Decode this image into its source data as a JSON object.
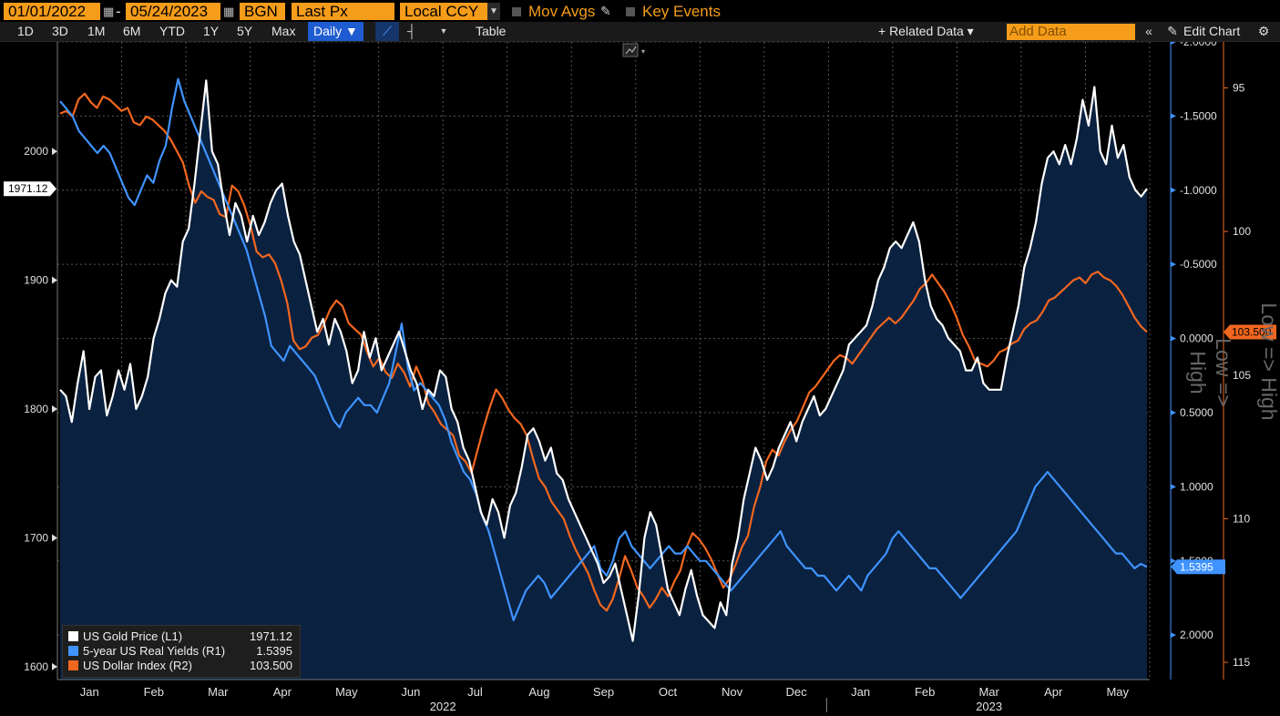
{
  "toolbar": {
    "start_date": "01/01/2022",
    "end_date": "05/24/2023",
    "source": "BGN",
    "field": "Last Px",
    "currency": "Local CCY",
    "mov_avgs": "Mov Avgs",
    "key_events": "Key Events",
    "periods": [
      "1D",
      "3D",
      "1M",
      "6M",
      "YTD",
      "1Y",
      "5Y",
      "Max"
    ],
    "frequency": "Daily ▼",
    "table": "Table",
    "related_data": "+ Related Data ▾",
    "add_data_placeholder": "Add Data",
    "edit_chart": "Edit Chart"
  },
  "colors": {
    "background": "#000000",
    "fill": "#0a2140",
    "gold": "#ffffff",
    "real_yield": "#3f93ff",
    "dxy": "#f2671f",
    "accent": "#f59c1a"
  },
  "icons": [
    "calendar-icon",
    "pencil-icon",
    "line-chart-icon",
    "bar-chart-icon",
    "collapse-icon",
    "edit-icon",
    "gear-icon"
  ],
  "chart_data": {
    "type": "line",
    "x_labels": [
      "Jan",
      "Feb",
      "Mar",
      "Apr",
      "May",
      "Jun",
      "Jul",
      "Aug",
      "Sep",
      "Oct",
      "Nov",
      "Dec",
      "Jan",
      "Feb",
      "Mar",
      "Apr",
      "May"
    ],
    "years": [
      "2022",
      "2023"
    ],
    "left_axis": {
      "ticks": [
        "1600",
        "1700",
        "1800",
        "1900",
        "2000"
      ],
      "ylim": [
        1590,
        2085
      ]
    },
    "right_axis_1": {
      "ticks": [
        "-2.0000",
        "-1.5000",
        "-1.0000",
        "-0.5000",
        "0.0000",
        "0.5000",
        "1.0000",
        "1.5000",
        "2.0000"
      ],
      "label": "Low => High",
      "inverted": true,
      "ylim": [
        -2.0,
        2.3
      ]
    },
    "right_axis_2": {
      "ticks": [
        "95",
        "100",
        "105",
        "110",
        "115"
      ],
      "label": "Low => High",
      "inverted": true,
      "ylim": [
        93.4,
        115.6
      ]
    },
    "series": [
      {
        "name": "US Gold Price (L1)",
        "axis": "left",
        "last": "1971.12",
        "color": "#ffffff",
        "values": [
          1815,
          1810,
          1790,
          1820,
          1845,
          1800,
          1825,
          1830,
          1795,
          1810,
          1830,
          1815,
          1835,
          1800,
          1810,
          1825,
          1855,
          1870,
          1890,
          1900,
          1895,
          1930,
          1940,
          1975,
          2015,
          2055,
          2000,
          1990,
          1960,
          1935,
          1960,
          1950,
          1930,
          1950,
          1935,
          1945,
          1960,
          1970,
          1975,
          1950,
          1930,
          1920,
          1900,
          1880,
          1860,
          1870,
          1850,
          1870,
          1860,
          1845,
          1820,
          1830,
          1860,
          1840,
          1855,
          1830,
          1840,
          1850,
          1860,
          1845,
          1830,
          1820,
          1800,
          1815,
          1810,
          1830,
          1825,
          1800,
          1790,
          1770,
          1760,
          1740,
          1720,
          1710,
          1730,
          1720,
          1700,
          1725,
          1735,
          1755,
          1780,
          1785,
          1775,
          1760,
          1770,
          1750,
          1745,
          1730,
          1720,
          1710,
          1700,
          1690,
          1680,
          1665,
          1670,
          1680,
          1660,
          1640,
          1620,
          1655,
          1700,
          1720,
          1710,
          1685,
          1660,
          1650,
          1640,
          1660,
          1675,
          1655,
          1640,
          1635,
          1630,
          1650,
          1640,
          1680,
          1700,
          1730,
          1750,
          1770,
          1760,
          1745,
          1755,
          1770,
          1780,
          1790,
          1775,
          1790,
          1800,
          1810,
          1795,
          1800,
          1810,
          1820,
          1830,
          1850,
          1855,
          1860,
          1865,
          1880,
          1900,
          1910,
          1925,
          1930,
          1925,
          1935,
          1945,
          1930,
          1900,
          1880,
          1870,
          1865,
          1855,
          1850,
          1845,
          1830,
          1830,
          1840,
          1820,
          1815,
          1815,
          1815,
          1840,
          1860,
          1880,
          1910,
          1925,
          1945,
          1975,
          1995,
          2000,
          1990,
          2005,
          1990,
          2010,
          2040,
          2020,
          2050,
          2000,
          1990,
          2020,
          1995,
          2005,
          1980,
          1970,
          1965,
          1971
        ]
      },
      {
        "name": "5-year US Real Yields (R1)",
        "axis": "right1",
        "last": "1.5395",
        "color": "#3f93ff",
        "values": [
          -1.6,
          -1.55,
          -1.5,
          -1.4,
          -1.35,
          -1.3,
          -1.25,
          -1.3,
          -1.25,
          -1.15,
          -1.05,
          -0.95,
          -0.9,
          -1.0,
          -1.1,
          -1.05,
          -1.2,
          -1.3,
          -1.55,
          -1.75,
          -1.6,
          -1.5,
          -1.4,
          -1.3,
          -1.2,
          -1.1,
          -1.0,
          -0.9,
          -0.8,
          -0.7,
          -0.6,
          -0.45,
          -0.3,
          -0.15,
          0.05,
          0.1,
          0.15,
          0.05,
          0.1,
          0.15,
          0.2,
          0.25,
          0.35,
          0.45,
          0.55,
          0.6,
          0.5,
          0.45,
          0.4,
          0.45,
          0.45,
          0.5,
          0.4,
          0.3,
          0.1,
          -0.1,
          0.2,
          0.35,
          0.3,
          0.35,
          0.4,
          0.45,
          0.55,
          0.7,
          0.8,
          0.9,
          0.95,
          1.05,
          1.2,
          1.3,
          1.45,
          1.6,
          1.75,
          1.9,
          1.8,
          1.7,
          1.65,
          1.6,
          1.65,
          1.75,
          1.7,
          1.65,
          1.6,
          1.55,
          1.5,
          1.45,
          1.4,
          1.55,
          1.6,
          1.5,
          1.35,
          1.3,
          1.4,
          1.45,
          1.5,
          1.55,
          1.5,
          1.45,
          1.4,
          1.45,
          1.45,
          1.4,
          1.45,
          1.5,
          1.5,
          1.55,
          1.6,
          1.65,
          1.7,
          1.65,
          1.6,
          1.55,
          1.5,
          1.45,
          1.4,
          1.35,
          1.3,
          1.4,
          1.45,
          1.5,
          1.55,
          1.55,
          1.6,
          1.6,
          1.65,
          1.7,
          1.65,
          1.6,
          1.65,
          1.7,
          1.6,
          1.55,
          1.5,
          1.45,
          1.35,
          1.3,
          1.35,
          1.4,
          1.45,
          1.5,
          1.55,
          1.55,
          1.6,
          1.65,
          1.7,
          1.75,
          1.7,
          1.65,
          1.6,
          1.55,
          1.5,
          1.45,
          1.4,
          1.35,
          1.3,
          1.2,
          1.1,
          1.0,
          0.95,
          0.9,
          0.95,
          1.0,
          1.05,
          1.1,
          1.15,
          1.2,
          1.25,
          1.3,
          1.35,
          1.4,
          1.45,
          1.45,
          1.5,
          1.55,
          1.52,
          1.54
        ]
      },
      {
        "name": "US Dollar Index (R2)",
        "axis": "right2",
        "last": "103.500",
        "color": "#f2671f",
        "values": [
          95.9,
          95.8,
          96.0,
          95.4,
          95.2,
          95.5,
          95.7,
          95.3,
          95.4,
          95.6,
          95.8,
          95.7,
          96.2,
          96.3,
          96.0,
          96.1,
          96.3,
          96.5,
          96.8,
          97.2,
          97.6,
          98.4,
          99.0,
          98.6,
          98.8,
          98.9,
          99.4,
          99.5,
          98.4,
          98.6,
          99.1,
          99.8,
          100.7,
          100.9,
          100.8,
          101.1,
          101.7,
          102.5,
          103.8,
          104.1,
          104.0,
          103.7,
          103.6,
          103.2,
          102.7,
          102.4,
          102.6,
          103.2,
          103.4,
          103.6,
          104.2,
          104.7,
          104.4,
          104.9,
          105.1,
          104.6,
          104.9,
          105.4,
          104.7,
          105.2,
          106.0,
          106.3,
          106.7,
          106.9,
          107.1,
          107.8,
          108.0,
          108.4,
          107.6,
          106.8,
          106.1,
          105.5,
          105.8,
          106.2,
          106.5,
          106.7,
          107.1,
          107.9,
          108.6,
          108.9,
          109.4,
          109.7,
          110.0,
          110.6,
          111.1,
          111.5,
          111.9,
          112.5,
          113.0,
          113.2,
          112.8,
          112.1,
          111.3,
          111.8,
          112.4,
          112.7,
          113.1,
          112.8,
          112.4,
          112.7,
          112.2,
          111.8,
          111.0,
          110.5,
          110.7,
          111.0,
          111.4,
          111.9,
          112.4,
          112.1,
          111.6,
          111.0,
          110.6,
          109.6,
          108.9,
          108.0,
          107.6,
          107.8,
          107.3,
          106.9,
          106.6,
          106.1,
          105.6,
          105.4,
          105.1,
          104.8,
          104.5,
          104.3,
          104.4,
          104.6,
          104.3,
          104.0,
          103.7,
          103.4,
          103.2,
          103.0,
          103.2,
          103.0,
          102.7,
          102.4,
          102.0,
          101.8,
          101.5,
          101.8,
          102.1,
          102.5,
          103.0,
          103.6,
          104.0,
          104.5,
          104.6,
          104.7,
          104.5,
          104.2,
          104.1,
          103.9,
          103.8,
          103.4,
          103.2,
          103.1,
          102.8,
          102.4,
          102.3,
          102.1,
          101.9,
          101.7,
          101.6,
          101.8,
          101.5,
          101.4,
          101.6,
          101.7,
          101.9,
          102.2,
          102.6,
          103.0,
          103.3,
          103.5
        ]
      }
    ],
    "last_value_tags": [
      "1971.12",
      "1.5395",
      "103.500"
    ]
  }
}
